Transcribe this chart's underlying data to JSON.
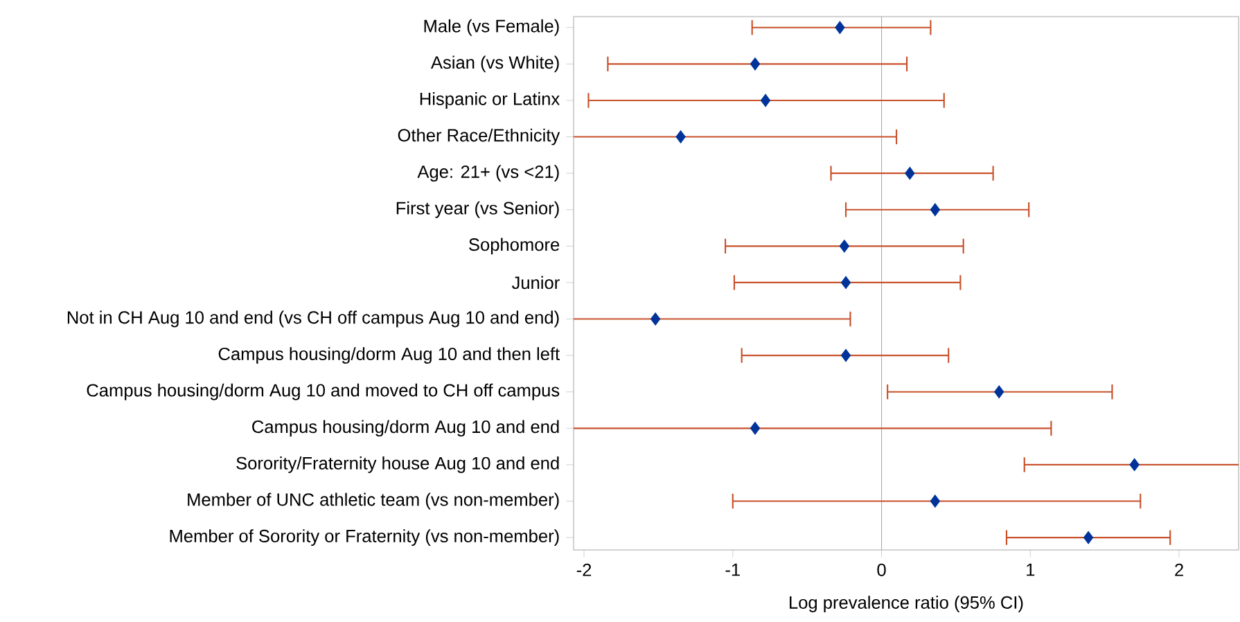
{
  "chart_data": {
    "type": "scatter",
    "orientation": "horizontal",
    "categories": [
      "Male (vs Female)",
      "Asian (vs White)",
      "Hispanic or Latinx",
      "Other Race/Ethnicity",
      "Age: 21+ (vs <21)",
      "First year (vs Senior)",
      "Sophomore",
      "Junior",
      "Not in CH Aug 10 and end (vs CH off campus Aug 10 and end)",
      "Campus housing/dorm Aug 10 and then left",
      "Campus housing/dorm Aug 10 and moved to CH off campus",
      "Campus housing/dorm Aug 10 and end",
      "Sorority/Fraternity house Aug 10 and end",
      "Member of UNC athletic team (vs non-member)",
      "Member of Sorority or Fraternity (vs non-member)"
    ],
    "values": [
      -0.28,
      -0.85,
      -0.78,
      -1.35,
      0.19,
      0.36,
      -0.25,
      -0.24,
      -1.52,
      -0.24,
      0.79,
      -0.85,
      1.7,
      0.36,
      1.39
    ],
    "errors": [
      [
        -0.87,
        0.33
      ],
      [
        -1.84,
        0.17
      ],
      [
        -1.97,
        0.42
      ],
      [
        -2.07,
        0.1
      ],
      [
        -0.34,
        0.75
      ],
      [
        -0.24,
        0.99
      ],
      [
        -1.05,
        0.55
      ],
      [
        -0.99,
        0.53
      ],
      [
        -2.07,
        -0.21
      ],
      [
        -0.94,
        0.45
      ],
      [
        0.04,
        1.55
      ],
      [
        -2.07,
        1.14
      ],
      [
        0.96,
        2.4
      ],
      [
        -1.0,
        1.74
      ],
      [
        0.84,
        1.94
      ]
    ],
    "color": "#003399",
    "marker": "diamond",
    "xlabel": "Log prevalence ratio (95% CI)",
    "xlim": [
      -2.07,
      2.4
    ],
    "xticks": [
      -2,
      -1,
      0,
      1,
      2
    ],
    "ref_lines": [
      {
        "axis": "x",
        "value": 0,
        "color": "#a6a6a6"
      }
    ]
  }
}
